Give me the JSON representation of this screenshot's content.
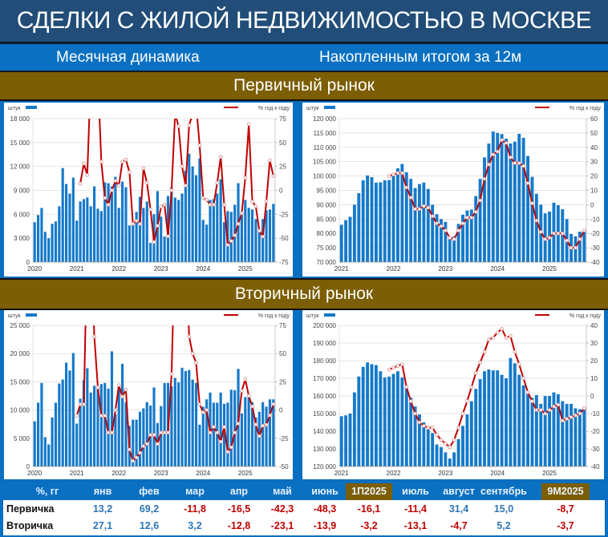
{
  "title": "СДЕЛКИ С ЖИЛОЙ НЕДВИЖИМОСТЬЮ В МОСКВЕ",
  "subheader": {
    "left": "Месячная динамика",
    "right": "Накопленным итогом за 12м"
  },
  "sections": {
    "primary": "Первичный рынок",
    "secondary": "Вторичный рынок"
  },
  "colors": {
    "bars": "#1579c9",
    "line": "#c00000",
    "title_bg": "#214d78",
    "sub_bg": "#0a70c2",
    "section_bg": "#7c5e04"
  },
  "chart_data": [
    {
      "id": "primary-monthly",
      "type": "bar+line",
      "legend": {
        "bars": "штук",
        "line": "% год к году"
      },
      "left_axis": {
        "min": 0,
        "max": 18000,
        "ticks": [
          0,
          3000,
          6000,
          9000,
          12000,
          15000,
          18000
        ]
      },
      "right_axis": {
        "min": -75,
        "max": 75,
        "ticks": [
          -75,
          -50,
          -25,
          0,
          25,
          50,
          75
        ]
      },
      "x_labels": [
        "2020",
        "2021",
        "2022",
        "2023",
        "2024",
        "2025"
      ],
      "bars_start": "2020-01",
      "bars": [
        5000,
        5900,
        6800,
        3800,
        3000,
        4800,
        5100,
        7000,
        11800,
        9800,
        8600,
        10600,
        5200,
        7600,
        7900,
        8100,
        7000,
        9500,
        6700,
        6400,
        10000,
        9900,
        9500,
        10700,
        6800,
        10100,
        9400,
        4600,
        4700,
        6300,
        8200,
        6800,
        7600,
        2400,
        6000,
        8900,
        5700,
        3200,
        8300,
        9400,
        8100,
        7800,
        8600,
        11500,
        13600,
        12000,
        10900,
        13000,
        5300,
        4700,
        7800,
        7900,
        8600,
        10400,
        5000,
        6400,
        6300,
        7200,
        9900,
        6000,
        7800,
        6800,
        6600,
        5400,
        3900,
        5400,
        6500,
        6600,
        7300
      ],
      "line_start": "2021-01",
      "line": [
        null,
        7,
        28,
        16,
        120,
        120,
        120,
        30,
        -8,
        -15,
        0,
        10,
        5,
        30,
        32,
        19,
        -35,
        -32,
        -35,
        23,
        8,
        -20,
        -54,
        -37,
        -17,
        -15,
        -48,
        0,
        80,
        67,
        25,
        5,
        68,
        80,
        90,
        47,
        -8,
        -10,
        -15,
        -15,
        8,
        35,
        -15,
        -57,
        -53,
        -47,
        -35,
        -24,
        13.2,
        69.2,
        -11.8,
        -16.5,
        -42.3,
        -48.3,
        -11.4,
        31.4,
        15.0
      ]
    },
    {
      "id": "primary-12m",
      "type": "bar+line",
      "legend": {
        "bars": "штук",
        "line": "% год к году"
      },
      "left_axis": {
        "min": 70000,
        "max": 120000,
        "ticks": [
          70000,
          75000,
          80000,
          85000,
          90000,
          95000,
          100000,
          105000,
          110000,
          115000,
          120000
        ]
      },
      "right_axis": {
        "min": -40,
        "max": 60,
        "ticks": [
          -40,
          -30,
          -20,
          -10,
          0,
          10,
          20,
          30,
          40,
          50,
          60
        ]
      },
      "x_labels": [
        "2021",
        "2022",
        "2023",
        "2024",
        "2025"
      ],
      "bars_start": "2021-01",
      "bars": [
        83000,
        84600,
        85800,
        90000,
        94000,
        98500,
        100200,
        99600,
        97700,
        97800,
        98500,
        98600,
        100000,
        102700,
        104200,
        101300,
        99000,
        95800,
        97200,
        97700,
        95500,
        90000,
        86700,
        85000,
        84000,
        78000,
        79000,
        83300,
        86500,
        88000,
        88300,
        93000,
        99000,
        106500,
        111300,
        115500,
        115000,
        114600,
        113000,
        111300,
        112000,
        114700,
        113300,
        107000,
        99700,
        93800,
        90000,
        87000,
        87600,
        90700,
        89800,
        88400,
        85000,
        79800,
        79000,
        80600,
        81000
      ],
      "line_start": "2021-12",
      "line": [
        20,
        21,
        22,
        22,
        12,
        5,
        -3,
        -3,
        -1,
        -2,
        -8,
        -13,
        -15,
        -18,
        -23,
        -24,
        -18,
        -13,
        -9,
        -9,
        -5,
        3,
        18,
        28,
        35,
        37,
        45,
        43,
        33,
        29,
        29,
        27,
        15,
        1,
        -11,
        -19,
        -24,
        -23,
        -20,
        -20,
        -20,
        -25,
        -30,
        -30,
        -24,
        -18
      ]
    },
    {
      "id": "secondary-monthly",
      "type": "bar+line",
      "legend": {
        "bars": "штук",
        "line": "% год к году"
      },
      "left_axis": {
        "min": 0,
        "max": 25000,
        "ticks": [
          0,
          5000,
          10000,
          15000,
          20000,
          25000
        ]
      },
      "right_axis": {
        "min": -50,
        "max": 75,
        "ticks": [
          -50,
          -25,
          0,
          25,
          50,
          75
        ]
      },
      "x_labels": [
        "2020",
        "2021",
        "2022",
        "2023",
        "2024",
        "2025"
      ],
      "bars_start": "2020-01",
      "bars": [
        8000,
        11300,
        14800,
        5200,
        3900,
        8700,
        11300,
        14700,
        15400,
        18400,
        17000,
        20100,
        7600,
        12000,
        15300,
        17400,
        13100,
        14300,
        14000,
        14600,
        14800,
        13800,
        20400,
        9300,
        14500,
        18200,
        11400,
        7200,
        8300,
        8300,
        9700,
        10300,
        11400,
        10800,
        14000,
        7700,
        10700,
        14800,
        14800,
        14200,
        15700,
        14900,
        17500,
        16900,
        17100,
        15400,
        14800,
        7400,
        10600,
        11900,
        13100,
        11300,
        11300,
        13100,
        11100,
        11300,
        13600,
        13500,
        17300,
        9400,
        12300,
        12300,
        11400,
        8700,
        9700,
        11400,
        10600,
        11900,
        11900
      ],
      "line_start": "2021-01",
      "line": [
        -5,
        5,
        5,
        150,
        150,
        65,
        20,
        -5,
        -5,
        -20,
        -20,
        0,
        22,
        12,
        18,
        -35,
        -45,
        -42,
        -38,
        -32,
        -30,
        -22,
        -22,
        -30,
        -20,
        -20,
        -20,
        32,
        150,
        150,
        150,
        150,
        65,
        50,
        42,
        5,
        -2,
        0,
        -20,
        -15,
        -20,
        -28,
        -15,
        -37,
        -33,
        -20,
        -12,
        17,
        27.1,
        12.6,
        3.2,
        -12.8,
        -23.1,
        -13.9,
        -13.1,
        -4.7,
        5.2
      ]
    },
    {
      "id": "secondary-12m",
      "type": "bar+line",
      "legend": {
        "bars": "штук",
        "line": "% год к году"
      },
      "left_axis": {
        "min": 120000,
        "max": 200000,
        "ticks": [
          120000,
          130000,
          140000,
          150000,
          160000,
          170000,
          180000,
          190000,
          200000
        ]
      },
      "right_axis": {
        "min": -40,
        "max": 40,
        "ticks": [
          -40,
          -30,
          -20,
          -10,
          0,
          10,
          20,
          30,
          40
        ]
      },
      "x_labels": [
        "2021",
        "2022",
        "2023",
        "2024",
        "2025"
      ],
      "bars_start": "2021-01",
      "bars": [
        148500,
        149000,
        150000,
        162000,
        171000,
        176500,
        179000,
        178000,
        177500,
        174000,
        170500,
        171000,
        172500,
        174000,
        170500,
        165000,
        159000,
        154000,
        149500,
        145000,
        141000,
        139000,
        132500,
        131000,
        128000,
        124500,
        128000,
        135500,
        143000,
        149500,
        157000,
        164000,
        169500,
        174000,
        175000,
        174500,
        174500,
        172000,
        170000,
        181500,
        178500,
        172000,
        166000,
        162500,
        159000,
        160500,
        155500,
        160000,
        160000,
        162000,
        161000,
        157000,
        155500,
        155500,
        153000,
        152500,
        153000
      ],
      "line_start": "2021-12",
      "line": [
        15,
        16,
        17,
        18,
        5,
        -3,
        -10,
        -15,
        -17,
        -18,
        -18,
        -22,
        -25,
        -27,
        -29,
        -25,
        -18,
        -10,
        -3,
        5,
        13,
        19,
        25,
        32,
        33,
        36,
        38,
        33,
        34,
        25,
        18,
        10,
        2,
        -3,
        -8,
        -8,
        -10,
        -8,
        -6,
        -5,
        -14,
        -13,
        -12,
        -11,
        -10,
        -7
      ]
    }
  ],
  "table": {
    "corner": "%, гг",
    "columns": [
      "янв",
      "фев",
      "мар",
      "апр",
      "май",
      "июнь",
      "1П2025",
      "июль",
      "август",
      "сентябрь",
      "9М2025"
    ],
    "rows": [
      {
        "label": "Первичка",
        "values": [
          "13,2",
          "69,2",
          "-11,8",
          "-16,5",
          "-42,3",
          "-48,3",
          "-16,1",
          "-11,4",
          "31,4",
          "15,0",
          "-8,7"
        ]
      },
      {
        "label": "Вторичка",
        "values": [
          "27,1",
          "12,6",
          "3,2",
          "-12,8",
          "-23,1",
          "-13,9",
          "-3,2",
          "-13,1",
          "-4,7",
          "5,2",
          "-3,7"
        ]
      }
    ]
  }
}
